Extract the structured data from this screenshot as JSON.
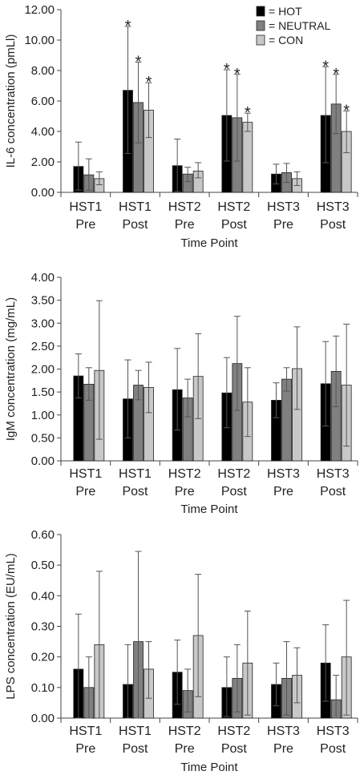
{
  "chart_data": [
    {
      "type": "bar",
      "categories": [
        [
          "HST1",
          "Pre"
        ],
        [
          "HST1",
          "Post"
        ],
        [
          "HST2",
          "Pre"
        ],
        [
          "HST2",
          "Post"
        ],
        [
          "HST3",
          "Pre"
        ],
        [
          "HST3",
          "Post"
        ]
      ],
      "xlabel": "Time Point",
      "ylabel": "IL-6 concentration (pmLl)",
      "ylim": [
        0,
        12
      ],
      "yticks": [
        "0.00",
        "2.00",
        "4.00",
        "6.00",
        "8.00",
        "10.00",
        "12.00"
      ],
      "legend": {
        "position": "top-right",
        "entries": [
          "= HOT",
          "= NEUTRAL",
          "= CON"
        ]
      },
      "series": [
        {
          "name": "HOT",
          "color": "#000000",
          "values": [
            1.7,
            6.7,
            1.75,
            5.05,
            1.2,
            5.05
          ],
          "err_high": [
            3.3,
            10.9,
            3.5,
            8.05,
            1.85,
            8.25
          ],
          "err_low": [
            0.15,
            2.55,
            0.05,
            2.05,
            0.55,
            1.95
          ]
        },
        {
          "name": "NEUTRAL",
          "color": "#808080",
          "values": [
            1.15,
            5.9,
            1.2,
            4.9,
            1.3,
            5.8
          ],
          "err_high": [
            2.2,
            8.55,
            1.65,
            7.75,
            1.9,
            7.75
          ],
          "err_low": [
            0.15,
            3.25,
            0.7,
            2.05,
            0.65,
            3.85
          ]
        },
        {
          "name": "CON",
          "color": "#c8c8c8",
          "values": [
            0.9,
            5.4,
            1.4,
            4.6,
            0.9,
            4.0
          ],
          "err_high": [
            1.35,
            7.2,
            1.95,
            5.2,
            1.35,
            5.35
          ],
          "err_low": [
            0.5,
            3.6,
            0.95,
            4.0,
            0.45,
            2.6
          ]
        }
      ],
      "significance": [
        [
          false,
          true,
          false,
          true,
          false,
          true
        ],
        [
          false,
          true,
          false,
          true,
          false,
          true
        ],
        [
          false,
          true,
          false,
          true,
          false,
          true
        ]
      ],
      "significance_symbol": "*"
    },
    {
      "type": "bar",
      "categories": [
        [
          "HST1",
          "Pre"
        ],
        [
          "HST1",
          "Post"
        ],
        [
          "HST2",
          "Pre"
        ],
        [
          "HST2",
          "Post"
        ],
        [
          "HST3",
          "Pre"
        ],
        [
          "HST3",
          "Post"
        ]
      ],
      "xlabel": "Time Point",
      "ylabel": "IgM concentration (mg/mL)",
      "ylim": [
        0,
        4
      ],
      "yticks": [
        "0.00",
        "0.50",
        "1.00",
        "1.50",
        "2.00",
        "2.50",
        "3.00",
        "3.50",
        "4.00"
      ],
      "series": [
        {
          "name": "HOT",
          "color": "#000000",
          "values": [
            1.85,
            1.35,
            1.55,
            1.48,
            1.32,
            1.68
          ],
          "err_high": [
            2.33,
            2.2,
            2.45,
            2.25,
            1.7,
            2.6
          ],
          "err_low": [
            1.37,
            0.5,
            0.67,
            0.72,
            0.94,
            0.76
          ]
        },
        {
          "name": "NEUTRAL",
          "color": "#808080",
          "values": [
            1.67,
            1.65,
            1.37,
            2.12,
            1.78,
            1.95
          ],
          "err_high": [
            2.03,
            1.97,
            1.78,
            3.15,
            2.03,
            2.72
          ],
          "err_low": [
            1.32,
            1.33,
            0.96,
            1.1,
            1.52,
            1.18
          ]
        },
        {
          "name": "CON",
          "color": "#c8c8c8",
          "values": [
            1.97,
            1.6,
            1.84,
            1.28,
            2.01,
            1.65
          ],
          "err_high": [
            3.49,
            2.15,
            2.77,
            2.03,
            2.92,
            2.98
          ],
          "err_low": [
            0.47,
            1.05,
            0.92,
            0.53,
            1.12,
            0.32
          ]
        }
      ]
    },
    {
      "type": "bar",
      "categories": [
        [
          "HST1",
          "Pre"
        ],
        [
          "HST1",
          "Post"
        ],
        [
          "HST2",
          "Pre"
        ],
        [
          "HST2",
          "Post"
        ],
        [
          "HST3",
          "Pre"
        ],
        [
          "HST3",
          "Post"
        ]
      ],
      "xlabel": "Time Point",
      "ylabel": "LPS concentration (EU/mL)",
      "ylim": [
        0,
        0.6
      ],
      "yticks": [
        "0.00",
        "0.10",
        "0.20",
        "0.30",
        "0.40",
        "0.50",
        "0.60"
      ],
      "series": [
        {
          "name": "HOT",
          "color": "#000000",
          "values": [
            0.16,
            0.11,
            0.15,
            0.1,
            0.11,
            0.18
          ],
          "err_high": [
            0.34,
            0.24,
            0.255,
            0.2,
            0.18,
            0.305
          ],
          "err_low": [
            0.0,
            0.0,
            0.045,
            0.005,
            0.04,
            0.055
          ]
        },
        {
          "name": "NEUTRAL",
          "color": "#808080",
          "values": [
            0.1,
            0.25,
            0.09,
            0.13,
            0.13,
            0.06
          ],
          "err_high": [
            0.2,
            0.545,
            0.16,
            0.24,
            0.25,
            0.14
          ],
          "err_low": [
            0.0,
            0.0,
            0.02,
            0.02,
            0.01,
            0.0
          ]
        },
        {
          "name": "CON",
          "color": "#c8c8c8",
          "values": [
            0.24,
            0.16,
            0.27,
            0.18,
            0.14,
            0.2
          ],
          "err_high": [
            0.48,
            0.25,
            0.47,
            0.35,
            0.23,
            0.385
          ],
          "err_low": [
            0.0,
            0.065,
            0.07,
            0.01,
            0.05,
            0.01
          ]
        }
      ]
    }
  ]
}
